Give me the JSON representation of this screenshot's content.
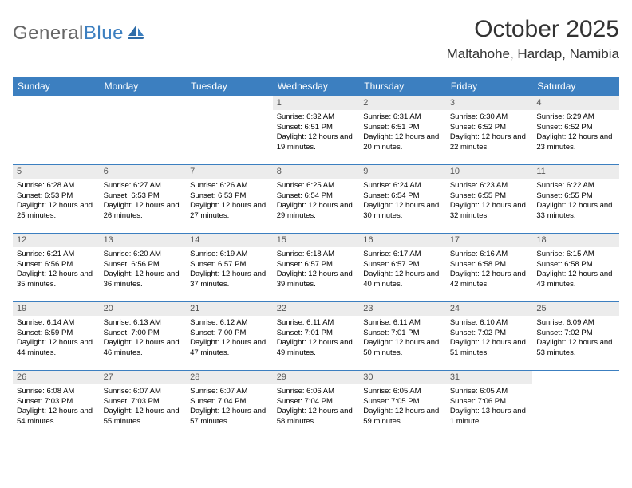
{
  "logo": {
    "text_general": "General",
    "text_blue": "Blue"
  },
  "title": "October 2025",
  "location": "Maltahohe, Hardap, Namibia",
  "colors": {
    "header_bg": "#3c7fc0",
    "header_fg": "#ffffff",
    "daynum_bg": "#ececec",
    "daynum_fg": "#555555",
    "border": "#3c7fc0",
    "logo_gray": "#666666",
    "logo_blue": "#3c7fc0"
  },
  "weekdays": [
    "Sunday",
    "Monday",
    "Tuesday",
    "Wednesday",
    "Thursday",
    "Friday",
    "Saturday"
  ],
  "weeks": [
    [
      null,
      null,
      null,
      {
        "n": "1",
        "sr": "6:32 AM",
        "ss": "6:51 PM",
        "dl": "12 hours and 19 minutes."
      },
      {
        "n": "2",
        "sr": "6:31 AM",
        "ss": "6:51 PM",
        "dl": "12 hours and 20 minutes."
      },
      {
        "n": "3",
        "sr": "6:30 AM",
        "ss": "6:52 PM",
        "dl": "12 hours and 22 minutes."
      },
      {
        "n": "4",
        "sr": "6:29 AM",
        "ss": "6:52 PM",
        "dl": "12 hours and 23 minutes."
      }
    ],
    [
      {
        "n": "5",
        "sr": "6:28 AM",
        "ss": "6:53 PM",
        "dl": "12 hours and 25 minutes."
      },
      {
        "n": "6",
        "sr": "6:27 AM",
        "ss": "6:53 PM",
        "dl": "12 hours and 26 minutes."
      },
      {
        "n": "7",
        "sr": "6:26 AM",
        "ss": "6:53 PM",
        "dl": "12 hours and 27 minutes."
      },
      {
        "n": "8",
        "sr": "6:25 AM",
        "ss": "6:54 PM",
        "dl": "12 hours and 29 minutes."
      },
      {
        "n": "9",
        "sr": "6:24 AM",
        "ss": "6:54 PM",
        "dl": "12 hours and 30 minutes."
      },
      {
        "n": "10",
        "sr": "6:23 AM",
        "ss": "6:55 PM",
        "dl": "12 hours and 32 minutes."
      },
      {
        "n": "11",
        "sr": "6:22 AM",
        "ss": "6:55 PM",
        "dl": "12 hours and 33 minutes."
      }
    ],
    [
      {
        "n": "12",
        "sr": "6:21 AM",
        "ss": "6:56 PM",
        "dl": "12 hours and 35 minutes."
      },
      {
        "n": "13",
        "sr": "6:20 AM",
        "ss": "6:56 PM",
        "dl": "12 hours and 36 minutes."
      },
      {
        "n": "14",
        "sr": "6:19 AM",
        "ss": "6:57 PM",
        "dl": "12 hours and 37 minutes."
      },
      {
        "n": "15",
        "sr": "6:18 AM",
        "ss": "6:57 PM",
        "dl": "12 hours and 39 minutes."
      },
      {
        "n": "16",
        "sr": "6:17 AM",
        "ss": "6:57 PM",
        "dl": "12 hours and 40 minutes."
      },
      {
        "n": "17",
        "sr": "6:16 AM",
        "ss": "6:58 PM",
        "dl": "12 hours and 42 minutes."
      },
      {
        "n": "18",
        "sr": "6:15 AM",
        "ss": "6:58 PM",
        "dl": "12 hours and 43 minutes."
      }
    ],
    [
      {
        "n": "19",
        "sr": "6:14 AM",
        "ss": "6:59 PM",
        "dl": "12 hours and 44 minutes."
      },
      {
        "n": "20",
        "sr": "6:13 AM",
        "ss": "7:00 PM",
        "dl": "12 hours and 46 minutes."
      },
      {
        "n": "21",
        "sr": "6:12 AM",
        "ss": "7:00 PM",
        "dl": "12 hours and 47 minutes."
      },
      {
        "n": "22",
        "sr": "6:11 AM",
        "ss": "7:01 PM",
        "dl": "12 hours and 49 minutes."
      },
      {
        "n": "23",
        "sr": "6:11 AM",
        "ss": "7:01 PM",
        "dl": "12 hours and 50 minutes."
      },
      {
        "n": "24",
        "sr": "6:10 AM",
        "ss": "7:02 PM",
        "dl": "12 hours and 51 minutes."
      },
      {
        "n": "25",
        "sr": "6:09 AM",
        "ss": "7:02 PM",
        "dl": "12 hours and 53 minutes."
      }
    ],
    [
      {
        "n": "26",
        "sr": "6:08 AM",
        "ss": "7:03 PM",
        "dl": "12 hours and 54 minutes."
      },
      {
        "n": "27",
        "sr": "6:07 AM",
        "ss": "7:03 PM",
        "dl": "12 hours and 55 minutes."
      },
      {
        "n": "28",
        "sr": "6:07 AM",
        "ss": "7:04 PM",
        "dl": "12 hours and 57 minutes."
      },
      {
        "n": "29",
        "sr": "6:06 AM",
        "ss": "7:04 PM",
        "dl": "12 hours and 58 minutes."
      },
      {
        "n": "30",
        "sr": "6:05 AM",
        "ss": "7:05 PM",
        "dl": "12 hours and 59 minutes."
      },
      {
        "n": "31",
        "sr": "6:05 AM",
        "ss": "7:06 PM",
        "dl": "13 hours and 1 minute."
      },
      null
    ]
  ],
  "labels": {
    "sunrise": "Sunrise:",
    "sunset": "Sunset:",
    "daylight": "Daylight:"
  }
}
